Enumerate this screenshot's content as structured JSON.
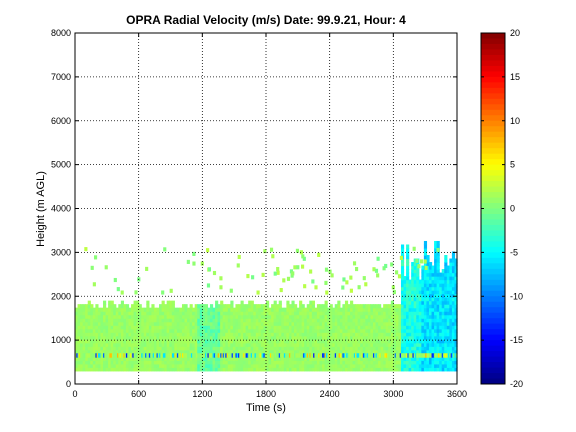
{
  "chart_data": {
    "type": "heatmap",
    "title": "OPRA Radial Velocity (m/s)  Date: 99.9.21, Hour: 4",
    "xlabel": "Time (s)",
    "ylabel": "Height (m AGL)",
    "xlim": [
      0,
      3600
    ],
    "ylim": [
      0,
      8000
    ],
    "xticks": [
      "0",
      "600",
      "1200",
      "1800",
      "2400",
      "3000",
      "3600"
    ],
    "yticks": [
      "0",
      "1000",
      "2000",
      "3000",
      "4000",
      "5000",
      "6000",
      "7000",
      "8000"
    ],
    "grid": true,
    "colorbar": {
      "min": -20,
      "max": 20,
      "ticks": [
        "20",
        "15",
        "10",
        "5",
        "0",
        "-5",
        "-10",
        "-15",
        "-20"
      ],
      "colormap": "jet"
    },
    "regions": [
      {
        "t": [
          0,
          3600
        ],
        "h": [
          300,
          1800
        ],
        "v": 1
      },
      {
        "t": [
          0,
          3600
        ],
        "h": [
          1800,
          2000
        ],
        "v": 1
      },
      {
        "t": [
          1150,
          1350
        ],
        "h": [
          300,
          1700
        ],
        "v": -1.5
      },
      {
        "t": [
          3050,
          3250
        ],
        "h": [
          300,
          2800
        ],
        "v": -5
      },
      {
        "t": [
          3300,
          3600
        ],
        "h": [
          300,
          3400
        ],
        "v": -6
      }
    ],
    "band_height": [
      600,
      700
    ]
  }
}
